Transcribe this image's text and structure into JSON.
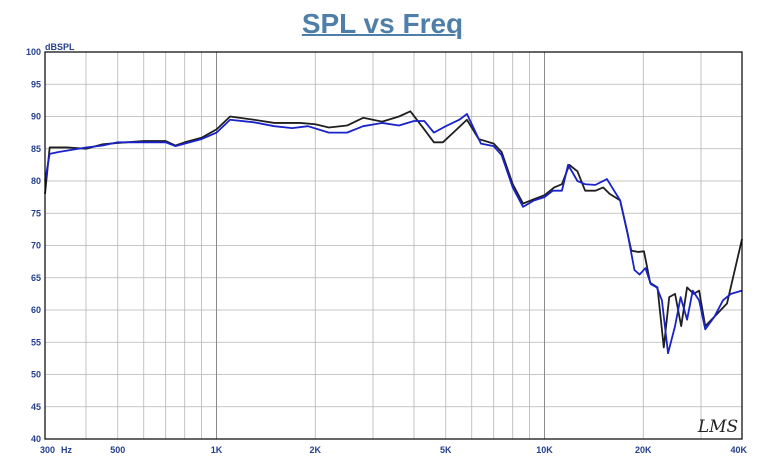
{
  "chart_data": {
    "type": "line",
    "title": "SPL vs Freq",
    "ylabel": "dBSPL",
    "xunit": "Hz",
    "xscale": "log",
    "xlim": [
      300,
      40000
    ],
    "ylim": [
      40,
      100
    ],
    "grid": true,
    "yticks": [
      40,
      45,
      50,
      55,
      60,
      65,
      70,
      75,
      80,
      85,
      90,
      95,
      100
    ],
    "xticks": [
      {
        "value": 300,
        "label": "300"
      },
      {
        "value": 500,
        "label": "500"
      },
      {
        "value": 1000,
        "label": "1K"
      },
      {
        "value": 2000,
        "label": "2K"
      },
      {
        "value": 5000,
        "label": "5K"
      },
      {
        "value": 10000,
        "label": "10K"
      },
      {
        "value": 20000,
        "label": "20K"
      },
      {
        "value": 40000,
        "label": "40K"
      }
    ],
    "series": [
      {
        "color": "#1f1f1f",
        "points": [
          [
            300,
            78
          ],
          [
            310,
            85.2
          ],
          [
            350,
            85.2
          ],
          [
            400,
            85
          ],
          [
            450,
            85.7
          ],
          [
            500,
            85.9
          ],
          [
            600,
            86.2
          ],
          [
            700,
            86.2
          ],
          [
            750,
            85.5
          ],
          [
            800,
            86
          ],
          [
            900,
            86.7
          ],
          [
            1000,
            88
          ],
          [
            1100,
            90
          ],
          [
            1300,
            89.5
          ],
          [
            1500,
            89
          ],
          [
            1800,
            89
          ],
          [
            2000,
            88.8
          ],
          [
            2200,
            88.3
          ],
          [
            2500,
            88.6
          ],
          [
            2800,
            89.8
          ],
          [
            3200,
            89.2
          ],
          [
            3600,
            90
          ],
          [
            3900,
            90.8
          ],
          [
            4300,
            88
          ],
          [
            4600,
            86
          ],
          [
            4900,
            86
          ],
          [
            5400,
            88
          ],
          [
            5800,
            89.5
          ],
          [
            6300,
            86.5
          ],
          [
            7000,
            85.8
          ],
          [
            7400,
            84.5
          ],
          [
            8000,
            79.5
          ],
          [
            8600,
            76.5
          ],
          [
            9300,
            77.2
          ],
          [
            10000,
            77.8
          ],
          [
            10700,
            79
          ],
          [
            11300,
            79.5
          ],
          [
            11900,
            82.5
          ],
          [
            12600,
            81.5
          ],
          [
            13300,
            78.5
          ],
          [
            14300,
            78.5
          ],
          [
            15100,
            79
          ],
          [
            15800,
            78
          ],
          [
            17000,
            77
          ],
          [
            18400,
            69.2
          ],
          [
            19300,
            69
          ],
          [
            20100,
            69.1
          ],
          [
            21000,
            64.2
          ],
          [
            22100,
            63.5
          ],
          [
            23100,
            54.2
          ],
          [
            24000,
            62
          ],
          [
            25000,
            62.5
          ],
          [
            26100,
            57.5
          ],
          [
            27200,
            63.5
          ],
          [
            28500,
            62.5
          ],
          [
            29600,
            63
          ],
          [
            30900,
            57.5
          ],
          [
            33000,
            59
          ],
          [
            36000,
            61
          ],
          [
            40000,
            71
          ]
        ]
      },
      {
        "color": "#1a22c9",
        "points": [
          [
            300,
            80
          ],
          [
            310,
            84.2
          ],
          [
            330,
            84.5
          ],
          [
            400,
            85.2
          ],
          [
            450,
            85.5
          ],
          [
            500,
            86
          ],
          [
            600,
            86
          ],
          [
            700,
            86
          ],
          [
            750,
            85.4
          ],
          [
            800,
            85.8
          ],
          [
            900,
            86.5
          ],
          [
            1000,
            87.5
          ],
          [
            1100,
            89.5
          ],
          [
            1300,
            89.1
          ],
          [
            1500,
            88.5
          ],
          [
            1700,
            88.2
          ],
          [
            1900,
            88.5
          ],
          [
            2200,
            87.5
          ],
          [
            2500,
            87.5
          ],
          [
            2800,
            88.5
          ],
          [
            3200,
            89
          ],
          [
            3600,
            88.6
          ],
          [
            4000,
            89.3
          ],
          [
            4300,
            89.3
          ],
          [
            4600,
            87.5
          ],
          [
            5000,
            88.5
          ],
          [
            5500,
            89.5
          ],
          [
            5800,
            90.4
          ],
          [
            6400,
            85.8
          ],
          [
            7000,
            85.4
          ],
          [
            7400,
            84
          ],
          [
            8000,
            79
          ],
          [
            8600,
            76
          ],
          [
            9300,
            77
          ],
          [
            10000,
            77.5
          ],
          [
            10600,
            78.5
          ],
          [
            11300,
            78.5
          ],
          [
            11800,
            82.5
          ],
          [
            12600,
            80
          ],
          [
            13300,
            79.5
          ],
          [
            14300,
            79.4
          ],
          [
            15500,
            80.3
          ],
          [
            17000,
            77
          ],
          [
            17900,
            72
          ],
          [
            18800,
            66.2
          ],
          [
            19500,
            65.5
          ],
          [
            20300,
            66.5
          ],
          [
            21100,
            64
          ],
          [
            22000,
            63.5
          ],
          [
            22800,
            61.5
          ],
          [
            23800,
            53.3
          ],
          [
            25000,
            57.5
          ],
          [
            26000,
            62
          ],
          [
            27200,
            58.5
          ],
          [
            28300,
            63
          ],
          [
            29600,
            61.5
          ],
          [
            30900,
            57
          ],
          [
            33000,
            59
          ],
          [
            35000,
            61.5
          ],
          [
            37000,
            62.5
          ],
          [
            40000,
            63
          ]
        ]
      }
    ],
    "watermark": "LMS"
  }
}
